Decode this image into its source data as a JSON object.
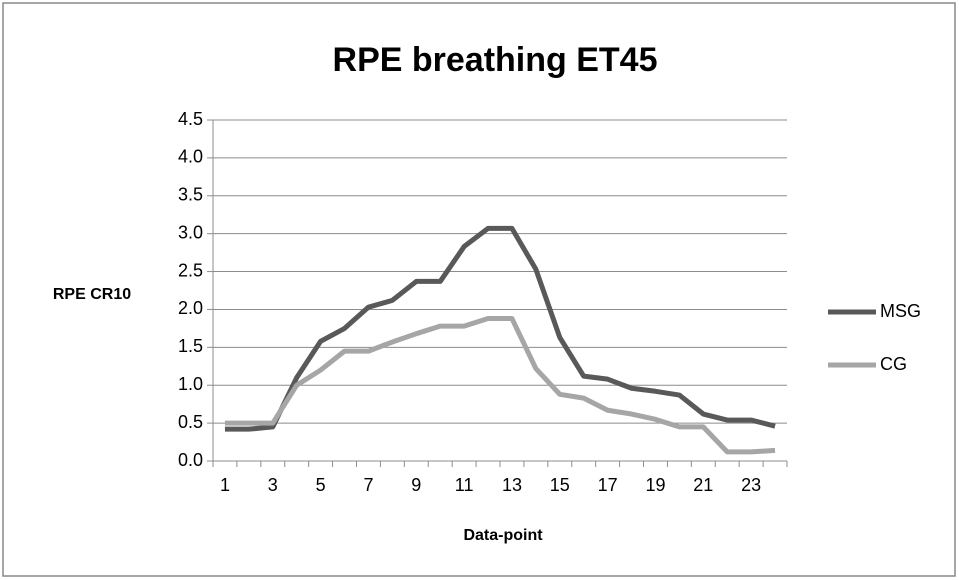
{
  "chart_data": {
    "type": "line",
    "title": "RPE breathing ET45",
    "x_label": "Data-point",
    "y_label": "RPE CR10",
    "categories": [
      "1",
      null,
      "3",
      null,
      "5",
      null,
      "7",
      null,
      "9",
      null,
      "11",
      null,
      "13",
      null,
      "15",
      null,
      "17",
      null,
      "19",
      null,
      "21",
      null,
      "23",
      null
    ],
    "series": [
      {
        "name": "MSG",
        "color": "#595959",
        "values": [
          0.42,
          0.42,
          0.45,
          1.1,
          1.58,
          1.75,
          2.03,
          2.12,
          2.37,
          2.37,
          2.83,
          3.07,
          3.07,
          2.53,
          1.63,
          1.12,
          1.08,
          0.96,
          0.92,
          0.87,
          0.62,
          0.54,
          0.54,
          0.46
        ]
      },
      {
        "name": "CG",
        "color": "#a6a6a6",
        "values": [
          0.5,
          0.5,
          0.5,
          1.0,
          1.2,
          1.45,
          1.45,
          1.57,
          1.68,
          1.78,
          1.78,
          1.88,
          1.88,
          1.22,
          0.88,
          0.83,
          0.67,
          0.62,
          0.55,
          0.45,
          0.45,
          0.12,
          0.12,
          0.14
        ]
      }
    ],
    "ylim": [
      0,
      4.5
    ],
    "yticks": [
      {
        "value": 0,
        "label": "0.0"
      },
      0.5,
      {
        "value": 1,
        "label": "1.0"
      },
      1.5,
      {
        "value": 2,
        "label": "2.0"
      },
      2.5,
      {
        "value": 3,
        "label": "3.0"
      },
      3.5,
      {
        "value": 4,
        "label": "4.0"
      },
      4.5
    ],
    "grid": true,
    "legend": "right"
  }
}
